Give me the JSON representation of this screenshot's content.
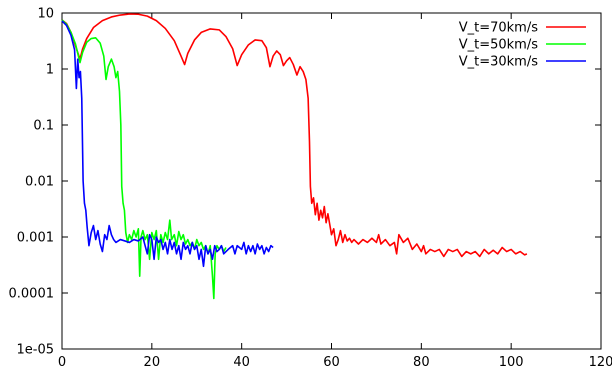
{
  "chart_data": {
    "type": "line",
    "title": "",
    "xlabel": "",
    "ylabel": "",
    "xlim": [
      0,
      120
    ],
    "ylim": [
      1e-05,
      10
    ],
    "yscale": "log",
    "grid": false,
    "legend_position": "top-right",
    "x_ticks": [
      "0",
      "20",
      "40",
      "60",
      "80",
      "100",
      "120"
    ],
    "y_ticks": [
      "1e-05",
      "0.0001",
      "0.001",
      "0.01",
      "0.1",
      "1",
      "10"
    ],
    "series": [
      {
        "name": "V_t=70km/s",
        "color": "#ff0000",
        "points": [
          [
            0,
            7.5
          ],
          [
            1,
            6.5
          ],
          [
            2,
            4.5
          ],
          [
            3,
            2.6
          ],
          [
            4,
            1.5
          ],
          [
            4.6,
            2.3
          ],
          [
            5.5,
            3.5
          ],
          [
            7,
            5.5
          ],
          [
            9,
            7.3
          ],
          [
            11,
            8.5
          ],
          [
            13,
            9.2
          ],
          [
            15,
            9.6
          ],
          [
            17,
            9.5
          ],
          [
            19,
            8.8
          ],
          [
            21,
            7.3
          ],
          [
            23,
            5.3
          ],
          [
            25,
            3.2
          ],
          [
            26.5,
            1.7
          ],
          [
            27.3,
            1.2
          ],
          [
            28,
            1.9
          ],
          [
            29.5,
            3.3
          ],
          [
            31,
            4.5
          ],
          [
            33,
            5.2
          ],
          [
            35,
            5.0
          ],
          [
            36.5,
            3.8
          ],
          [
            38,
            2.3
          ],
          [
            39,
            1.15
          ],
          [
            40,
            1.8
          ],
          [
            41.5,
            2.7
          ],
          [
            43,
            3.3
          ],
          [
            44.5,
            3.2
          ],
          [
            45.5,
            2.4
          ],
          [
            46.3,
            1.1
          ],
          [
            47,
            1.7
          ],
          [
            47.8,
            2.1
          ],
          [
            48.6,
            1.8
          ],
          [
            49.3,
            1.15
          ],
          [
            50,
            1.4
          ],
          [
            50.7,
            1.6
          ],
          [
            51.5,
            1.2
          ],
          [
            52.3,
            0.78
          ],
          [
            53,
            1.1
          ],
          [
            53.7,
            0.9
          ],
          [
            54.3,
            0.65
          ],
          [
            54.8,
            0.3
          ],
          [
            55.1,
            0.05
          ],
          [
            55.3,
            0.008
          ],
          [
            55.6,
            0.004
          ],
          [
            56,
            0.005
          ],
          [
            56.4,
            0.0025
          ],
          [
            56.8,
            0.004
          ],
          [
            57.2,
            0.002
          ],
          [
            57.6,
            0.003
          ],
          [
            58,
            0.0022
          ],
          [
            58.4,
            0.0035
          ],
          [
            58.8,
            0.0018
          ],
          [
            59.2,
            0.0026
          ],
          [
            59.6,
            0.0017
          ],
          [
            60,
            0.0011
          ],
          [
            60.5,
            0.0014
          ],
          [
            61,
            0.0007
          ],
          [
            61.5,
            0.0009
          ],
          [
            62,
            0.0013
          ],
          [
            62.5,
            0.0008
          ],
          [
            63,
            0.0011
          ],
          [
            63.5,
            0.00085
          ],
          [
            64,
            0.00095
          ],
          [
            64.5,
            0.0008
          ],
          [
            65,
            0.0009
          ],
          [
            66,
            0.00075
          ],
          [
            67,
            0.0009
          ],
          [
            68,
            0.0008
          ],
          [
            69,
            0.00095
          ],
          [
            70,
            0.0008
          ],
          [
            70.5,
            0.0011
          ],
          [
            71,
            0.00075
          ],
          [
            72,
            0.0009
          ],
          [
            73,
            0.0007
          ],
          [
            74,
            0.0008
          ],
          [
            74.5,
            0.0005
          ],
          [
            75,
            0.0011
          ],
          [
            76,
            0.0008
          ],
          [
            77,
            0.00095
          ],
          [
            78,
            0.0006
          ],
          [
            79,
            0.00075
          ],
          [
            80,
            0.00055
          ],
          [
            80.5,
            0.0007
          ],
          [
            81,
            0.0005
          ],
          [
            82,
            0.0006
          ],
          [
            83,
            0.00055
          ],
          [
            84,
            0.0006
          ],
          [
            85,
            0.00045
          ],
          [
            86,
            0.0006
          ],
          [
            87,
            0.00055
          ],
          [
            88,
            0.0006
          ],
          [
            89,
            0.00045
          ],
          [
            90,
            0.00055
          ],
          [
            91,
            0.0005
          ],
          [
            92,
            0.00055
          ],
          [
            93,
            0.00045
          ],
          [
            94,
            0.0006
          ],
          [
            95,
            0.0005
          ],
          [
            96,
            0.00058
          ],
          [
            97,
            0.0005
          ],
          [
            98,
            0.00065
          ],
          [
            99,
            0.00055
          ],
          [
            100,
            0.0006
          ],
          [
            101,
            0.0005
          ],
          [
            102,
            0.00055
          ],
          [
            103,
            0.00048
          ],
          [
            103.5,
            0.0005
          ]
        ]
      },
      {
        "name": "V_t=50km/s",
        "color": "#00ff00",
        "points": [
          [
            0,
            7.5
          ],
          [
            1,
            6.3
          ],
          [
            2,
            4.5
          ],
          [
            3,
            2.8
          ],
          [
            4,
            1.3
          ],
          [
            4.6,
            2.0
          ],
          [
            5.5,
            3.0
          ],
          [
            6.5,
            3.5
          ],
          [
            7.5,
            3.6
          ],
          [
            8.5,
            2.9
          ],
          [
            9.3,
            1.7
          ],
          [
            9.8,
            0.65
          ],
          [
            10.3,
            1.1
          ],
          [
            11,
            1.5
          ],
          [
            11.6,
            1.1
          ],
          [
            12,
            0.7
          ],
          [
            12.4,
            0.9
          ],
          [
            12.8,
            0.4
          ],
          [
            13.1,
            0.1
          ],
          [
            13.3,
            0.008
          ],
          [
            13.6,
            0.004
          ],
          [
            13.9,
            0.003
          ],
          [
            14.2,
            0.0012
          ],
          [
            14.6,
            0.0008
          ],
          [
            15,
            0.0011
          ],
          [
            15.5,
            0.0009
          ],
          [
            16,
            0.0013
          ],
          [
            16.5,
            0.001
          ],
          [
            17,
            0.0014
          ],
          [
            17.3,
            0.0002
          ],
          [
            17.6,
            0.001
          ],
          [
            18,
            0.0013
          ],
          [
            18.5,
            0.0009
          ],
          [
            19,
            0.0011
          ],
          [
            19.5,
            0.0004
          ],
          [
            20,
            0.0012
          ],
          [
            20.5,
            0.0009
          ],
          [
            21,
            0.0013
          ],
          [
            21.5,
            0.0004
          ],
          [
            22,
            0.0011
          ],
          [
            22.5,
            0.0008
          ],
          [
            23,
            0.0012
          ],
          [
            23.5,
            0.0009
          ],
          [
            24,
            0.002
          ],
          [
            24.4,
            0.0009
          ],
          [
            25,
            0.0011
          ],
          [
            25.5,
            0.0007
          ],
          [
            26,
            0.00125
          ],
          [
            26.5,
            0.0009
          ],
          [
            27,
            0.0011
          ],
          [
            27.5,
            0.00075
          ],
          [
            28,
            0.0009
          ],
          [
            28.5,
            0.0007
          ],
          [
            29,
            0.0008
          ],
          [
            29.5,
            0.0006
          ],
          [
            30,
            0.0009
          ],
          [
            30.5,
            0.0007
          ],
          [
            31,
            0.0008
          ],
          [
            31.5,
            0.0006
          ],
          [
            32,
            0.0007
          ],
          [
            32.5,
            0.0005
          ],
          [
            33,
            0.0007
          ],
          [
            33.5,
            0.0002
          ],
          [
            33.8,
            8e-05
          ],
          [
            34.1,
            0.0005
          ],
          [
            34.5,
            0.0007
          ],
          [
            35,
            0.0006
          ],
          [
            35.5,
            0.0007
          ],
          [
            36,
            0.00055
          ],
          [
            36.5,
            0.00065
          ]
        ]
      },
      {
        "name": "V_t=30km/s",
        "color": "#0000ff",
        "points": [
          [
            0,
            7.2
          ],
          [
            1,
            6.0
          ],
          [
            2,
            4.0
          ],
          [
            2.8,
            2.2
          ],
          [
            3.2,
            0.45
          ],
          [
            3.5,
            1.5
          ],
          [
            3.8,
            0.7
          ],
          [
            4.1,
            0.9
          ],
          [
            4.4,
            0.3
          ],
          [
            4.7,
            0.01
          ],
          [
            5,
            0.004
          ],
          [
            5.3,
            0.003
          ],
          [
            5.6,
            0.0015
          ],
          [
            6,
            0.0007
          ],
          [
            6.5,
            0.0012
          ],
          [
            7,
            0.0016
          ],
          [
            7.5,
            0.0009
          ],
          [
            8,
            0.0013
          ],
          [
            8.5,
            0.00075
          ],
          [
            9,
            0.00055
          ],
          [
            9.5,
            0.0011
          ],
          [
            10,
            0.0009
          ],
          [
            10.5,
            0.0016
          ],
          [
            11,
            0.0011
          ],
          [
            11.5,
            0.0009
          ],
          [
            12,
            0.0008
          ],
          [
            13,
            0.0009
          ],
          [
            14,
            0.00085
          ],
          [
            15,
            0.0008
          ],
          [
            16,
            0.0009
          ],
          [
            17,
            0.00085
          ],
          [
            18,
            0.001
          ],
          [
            18.5,
            0.0007
          ],
          [
            19,
            0.0005
          ],
          [
            19.5,
            0.0011
          ],
          [
            20,
            0.0009
          ],
          [
            20.5,
            0.0004
          ],
          [
            21,
            0.001
          ],
          [
            21.5,
            0.0008
          ],
          [
            22,
            0.0009
          ],
          [
            22.5,
            0.0006
          ],
          [
            23,
            0.0008
          ],
          [
            23.5,
            0.0005
          ],
          [
            24,
            0.0009
          ],
          [
            24.5,
            0.0006
          ],
          [
            25,
            0.0008
          ],
          [
            25.5,
            0.0005
          ],
          [
            26,
            0.0007
          ],
          [
            26.5,
            0.0004
          ],
          [
            27,
            0.0008
          ],
          [
            27.5,
            0.0006
          ],
          [
            28,
            0.0007
          ],
          [
            28.5,
            0.0005
          ],
          [
            29,
            0.0008
          ],
          [
            29.5,
            0.0006
          ],
          [
            30,
            0.0007
          ],
          [
            30.5,
            0.0004
          ],
          [
            31,
            0.0006
          ],
          [
            31.5,
            0.0003
          ],
          [
            32,
            0.0007
          ],
          [
            32.5,
            0.0005
          ],
          [
            33,
            0.0006
          ],
          [
            33.5,
            0.0004
          ],
          [
            34,
            0.0007
          ],
          [
            34.5,
            0.00055
          ],
          [
            35,
            0.0006
          ],
          [
            35.5,
            0.0007
          ],
          [
            36,
            0.0005
          ],
          [
            37,
            0.0006
          ],
          [
            38,
            0.0007
          ],
          [
            38.5,
            0.0005
          ],
          [
            39,
            0.0007
          ],
          [
            40,
            0.0006
          ],
          [
            40.5,
            0.0008
          ],
          [
            41,
            0.0005
          ],
          [
            41.5,
            0.0007
          ],
          [
            42,
            0.00055
          ],
          [
            42.5,
            0.0007
          ],
          [
            43,
            0.0005
          ],
          [
            43.5,
            0.00075
          ],
          [
            44,
            0.0006
          ],
          [
            44.5,
            0.0007
          ],
          [
            45,
            0.0005
          ],
          [
            45.5,
            0.00065
          ],
          [
            46,
            0.00055
          ],
          [
            46.5,
            0.0007
          ],
          [
            47,
            0.00065
          ]
        ]
      }
    ]
  }
}
